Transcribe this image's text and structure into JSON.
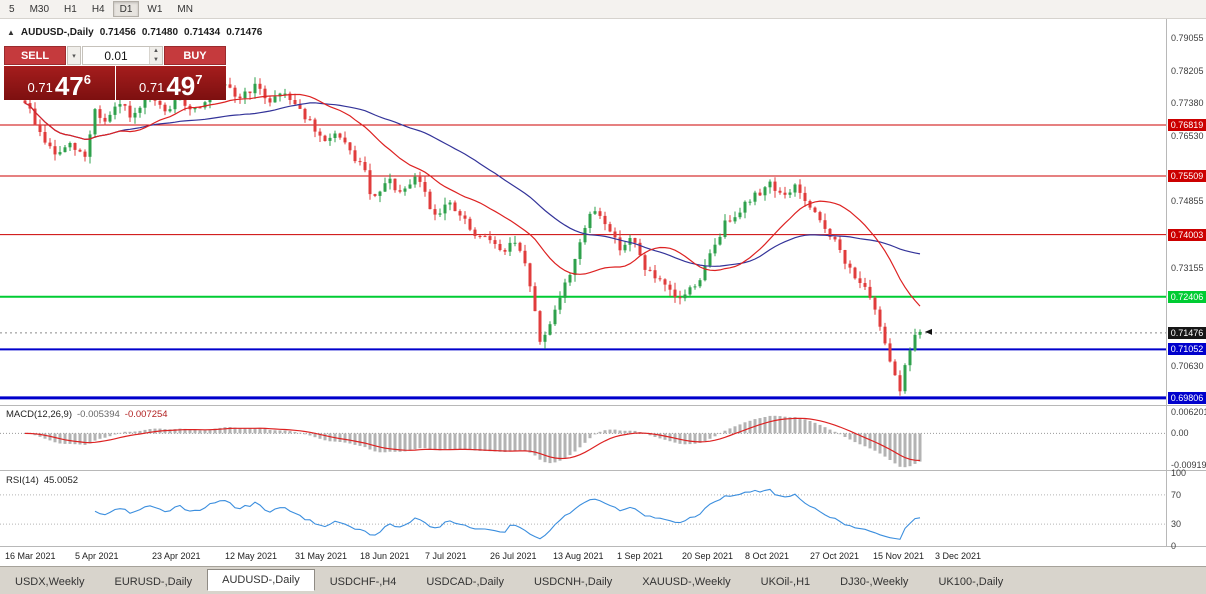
{
  "toolbar": {
    "periods": [
      "5",
      "M30",
      "H1",
      "H4",
      "D1",
      "W1",
      "MN"
    ],
    "active": "D1"
  },
  "chart_header": {
    "collapse": "▲",
    "title": "AUDUSD-,Daily",
    "o": "0.71456",
    "h": "0.71480",
    "l": "0.71434",
    "c": "0.71476"
  },
  "trade_panel": {
    "sell": "SELL",
    "buy": "BUY",
    "volume": "0.01",
    "sell_price": [
      "0.71",
      "47",
      "6"
    ],
    "buy_price": [
      "0.71",
      "49",
      "7"
    ]
  },
  "chart_data": {
    "type": "candlestick",
    "symbol": "AUDUSD-",
    "timeframe": "Daily",
    "price_range": [
      0.6965,
      0.7957
    ],
    "price_axis_labels": [
      {
        "label": "0.79055",
        "value": 0.79055
      },
      {
        "label": "0.78205",
        "value": 0.78205
      },
      {
        "label": "0.77380",
        "value": 0.7738
      },
      {
        "label": "0.76530",
        "value": 0.7653
      },
      {
        "label": "0.74855",
        "value": 0.74855
      },
      {
        "label": "0.73155",
        "value": 0.73155
      },
      {
        "label": "0.70630",
        "value": 0.7063
      }
    ],
    "levels": [
      {
        "value": 0.76819,
        "label": "0.76819",
        "color": "#cc0000",
        "width": 1
      },
      {
        "value": 0.75509,
        "label": "0.75509",
        "color": "#cc0000",
        "width": 1
      },
      {
        "value": 0.74003,
        "label": "0.74003",
        "color": "#cc0000",
        "width": 1
      },
      {
        "value": 0.72406,
        "label": "0.72406",
        "color": "#00cc33",
        "width": 2
      },
      {
        "value": 0.71052,
        "label": "0.71052",
        "color": "#0000cc",
        "width": 2
      },
      {
        "value": 0.69806,
        "label": "0.69806",
        "color": "#0000cc",
        "width": 3
      }
    ],
    "current_price": {
      "value": 0.71476,
      "label": "0.71476",
      "badge_color": "#161616"
    },
    "candles": {
      "count": 180,
      "up_color": "#2fa14c",
      "down_color": "#e03c3c",
      "path": [
        [
          0.0,
          0.7745
        ],
        [
          0.017,
          0.766
        ],
        [
          0.033,
          0.7605
        ],
        [
          0.05,
          0.7628
        ],
        [
          0.067,
          0.76
        ],
        [
          0.078,
          0.7722
        ],
        [
          0.089,
          0.7688
        ],
        [
          0.106,
          0.7735
        ],
        [
          0.122,
          0.77
        ],
        [
          0.139,
          0.7752
        ],
        [
          0.156,
          0.7715
        ],
        [
          0.172,
          0.7748
        ],
        [
          0.189,
          0.7722
        ],
        [
          0.206,
          0.7758
        ],
        [
          0.222,
          0.7782
        ],
        [
          0.239,
          0.775
        ],
        [
          0.256,
          0.7782
        ],
        [
          0.272,
          0.7745
        ],
        [
          0.289,
          0.7768
        ],
        [
          0.3,
          0.7745
        ],
        [
          0.317,
          0.7692
        ],
        [
          0.333,
          0.7632
        ],
        [
          0.344,
          0.7665
        ],
        [
          0.361,
          0.7617
        ],
        [
          0.378,
          0.7572
        ],
        [
          0.389,
          0.7482
        ],
        [
          0.406,
          0.754
        ],
        [
          0.422,
          0.75
        ],
        [
          0.439,
          0.7553
        ],
        [
          0.456,
          0.7452
        ],
        [
          0.472,
          0.748
        ],
        [
          0.489,
          0.7442
        ],
        [
          0.506,
          0.7382
        ],
        [
          0.517,
          0.7405
        ],
        [
          0.533,
          0.7347
        ],
        [
          0.544,
          0.7385
        ],
        [
          0.556,
          0.734
        ],
        [
          0.567,
          0.7252
        ],
        [
          0.574,
          0.7118
        ],
        [
          0.583,
          0.715
        ],
        [
          0.594,
          0.7225
        ],
        [
          0.608,
          0.7292
        ],
        [
          0.622,
          0.74
        ],
        [
          0.636,
          0.7465
        ],
        [
          0.65,
          0.743
        ],
        [
          0.663,
          0.7367
        ],
        [
          0.678,
          0.739
        ],
        [
          0.694,
          0.7312
        ],
        [
          0.711,
          0.7272
        ],
        [
          0.728,
          0.7232
        ],
        [
          0.741,
          0.7255
        ],
        [
          0.756,
          0.7292
        ],
        [
          0.77,
          0.7372
        ],
        [
          0.783,
          0.7432
        ],
        [
          0.8,
          0.747
        ],
        [
          0.817,
          0.7502
        ],
        [
          0.833,
          0.7535
        ],
        [
          0.848,
          0.7492
        ],
        [
          0.861,
          0.753
        ],
        [
          0.874,
          0.7472
        ],
        [
          0.889,
          0.7432
        ],
        [
          0.903,
          0.7392
        ],
        [
          0.917,
          0.7322
        ],
        [
          0.93,
          0.7292
        ],
        [
          0.944,
          0.7232
        ],
        [
          0.958,
          0.7152
        ],
        [
          0.969,
          0.7062
        ],
        [
          0.978,
          0.7002
        ],
        [
          0.986,
          0.7088
        ],
        [
          0.994,
          0.7142
        ],
        [
          1.0,
          0.7148
        ]
      ]
    },
    "moving_averages": [
      {
        "name": "ma-fast",
        "color": "#dd2222"
      },
      {
        "name": "ma-slow",
        "color": "#333399"
      }
    ],
    "x_axis_dates": [
      "16 Mar 2021",
      "5 Apr 2021",
      "23 Apr 2021",
      "12 May 2021",
      "31 May 2021",
      "18 Jun 2021",
      "7 Jul 2021",
      "26 Jul 2021",
      "13 Aug 2021",
      "1 Sep 2021",
      "20 Sep 2021",
      "8 Oct 2021",
      "27 Oct 2021",
      "15 Nov 2021",
      "3 Dec 2021"
    ],
    "macd": {
      "title": "MACD(12,26,9)",
      "value": "-0.005394",
      "signal_value": "-0.007254",
      "axis_labels": [
        "0.006201",
        "0.00",
        "-0.00919"
      ],
      "range": [
        -0.0105,
        0.0075
      ],
      "histogram_color": "#b3b3b3",
      "signal_color": "#dd2222"
    },
    "rsi": {
      "title": "RSI(14)",
      "value": "45.0052",
      "axis_labels": [
        "100",
        "70",
        "30",
        "0"
      ],
      "levels": [
        70,
        30
      ],
      "line_color": "#3b8ede"
    }
  },
  "tabs": {
    "items": [
      "USDX,Weekly",
      "EURUSD-,Daily",
      "AUDUSD-,Daily",
      "USDCHF-,H4",
      "USDCAD-,Daily",
      "USDCNH-,Daily",
      "XAUUSD-,Weekly",
      "UKOil-,H1",
      "DJ30-,Weekly",
      "UK100-,Daily"
    ],
    "active": "AUDUSD-,Daily"
  }
}
